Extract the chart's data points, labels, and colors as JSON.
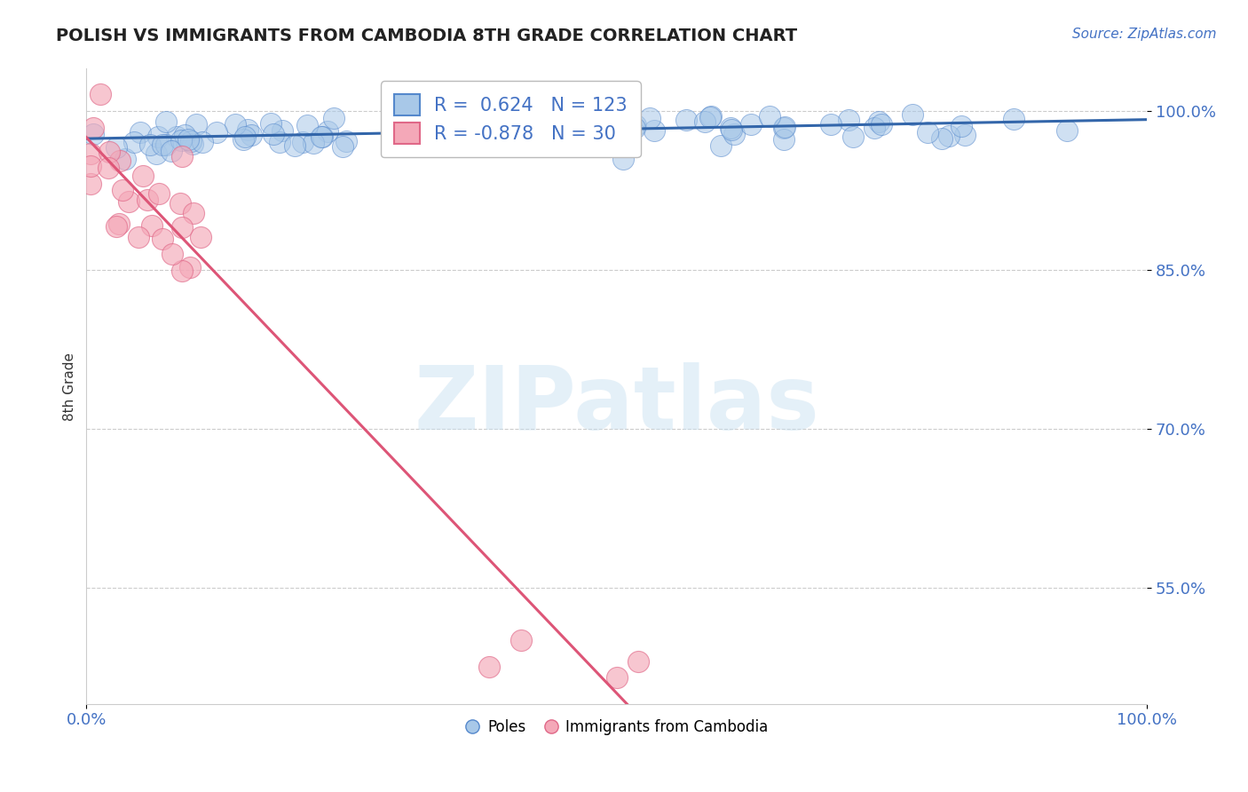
{
  "title": "POLISH VS IMMIGRANTS FROM CAMBODIA 8TH GRADE CORRELATION CHART",
  "source": "Source: ZipAtlas.com",
  "ylabel": "8th Grade",
  "watermark": "ZIPatlas",
  "xlim": [
    0.0,
    1.0
  ],
  "ylim": [
    0.44,
    1.04
  ],
  "yticks": [
    0.55,
    0.7,
    0.85,
    1.0
  ],
  "ytick_labels": [
    "55.0%",
    "70.0%",
    "85.0%",
    "100.0%"
  ],
  "xticks": [
    0.0,
    1.0
  ],
  "xtick_labels": [
    "0.0%",
    "100.0%"
  ],
  "blue_R": 0.624,
  "blue_N": 123,
  "pink_R": -0.878,
  "pink_N": 30,
  "blue_color": "#a8c8e8",
  "pink_color": "#f4a8b8",
  "blue_edge_color": "#5588cc",
  "pink_edge_color": "#e06888",
  "blue_line_color": "#3366aa",
  "pink_line_color": "#dd5577",
  "legend_label_blue": "Poles",
  "legend_label_pink": "Immigrants from Cambodia",
  "title_color": "#222222",
  "ylabel_color": "#333333",
  "source_color": "#4472c4",
  "tick_color": "#4472c4",
  "grid_color": "#cccccc",
  "background_color": "#ffffff",
  "blue_seed": 12,
  "pink_seed": 7
}
